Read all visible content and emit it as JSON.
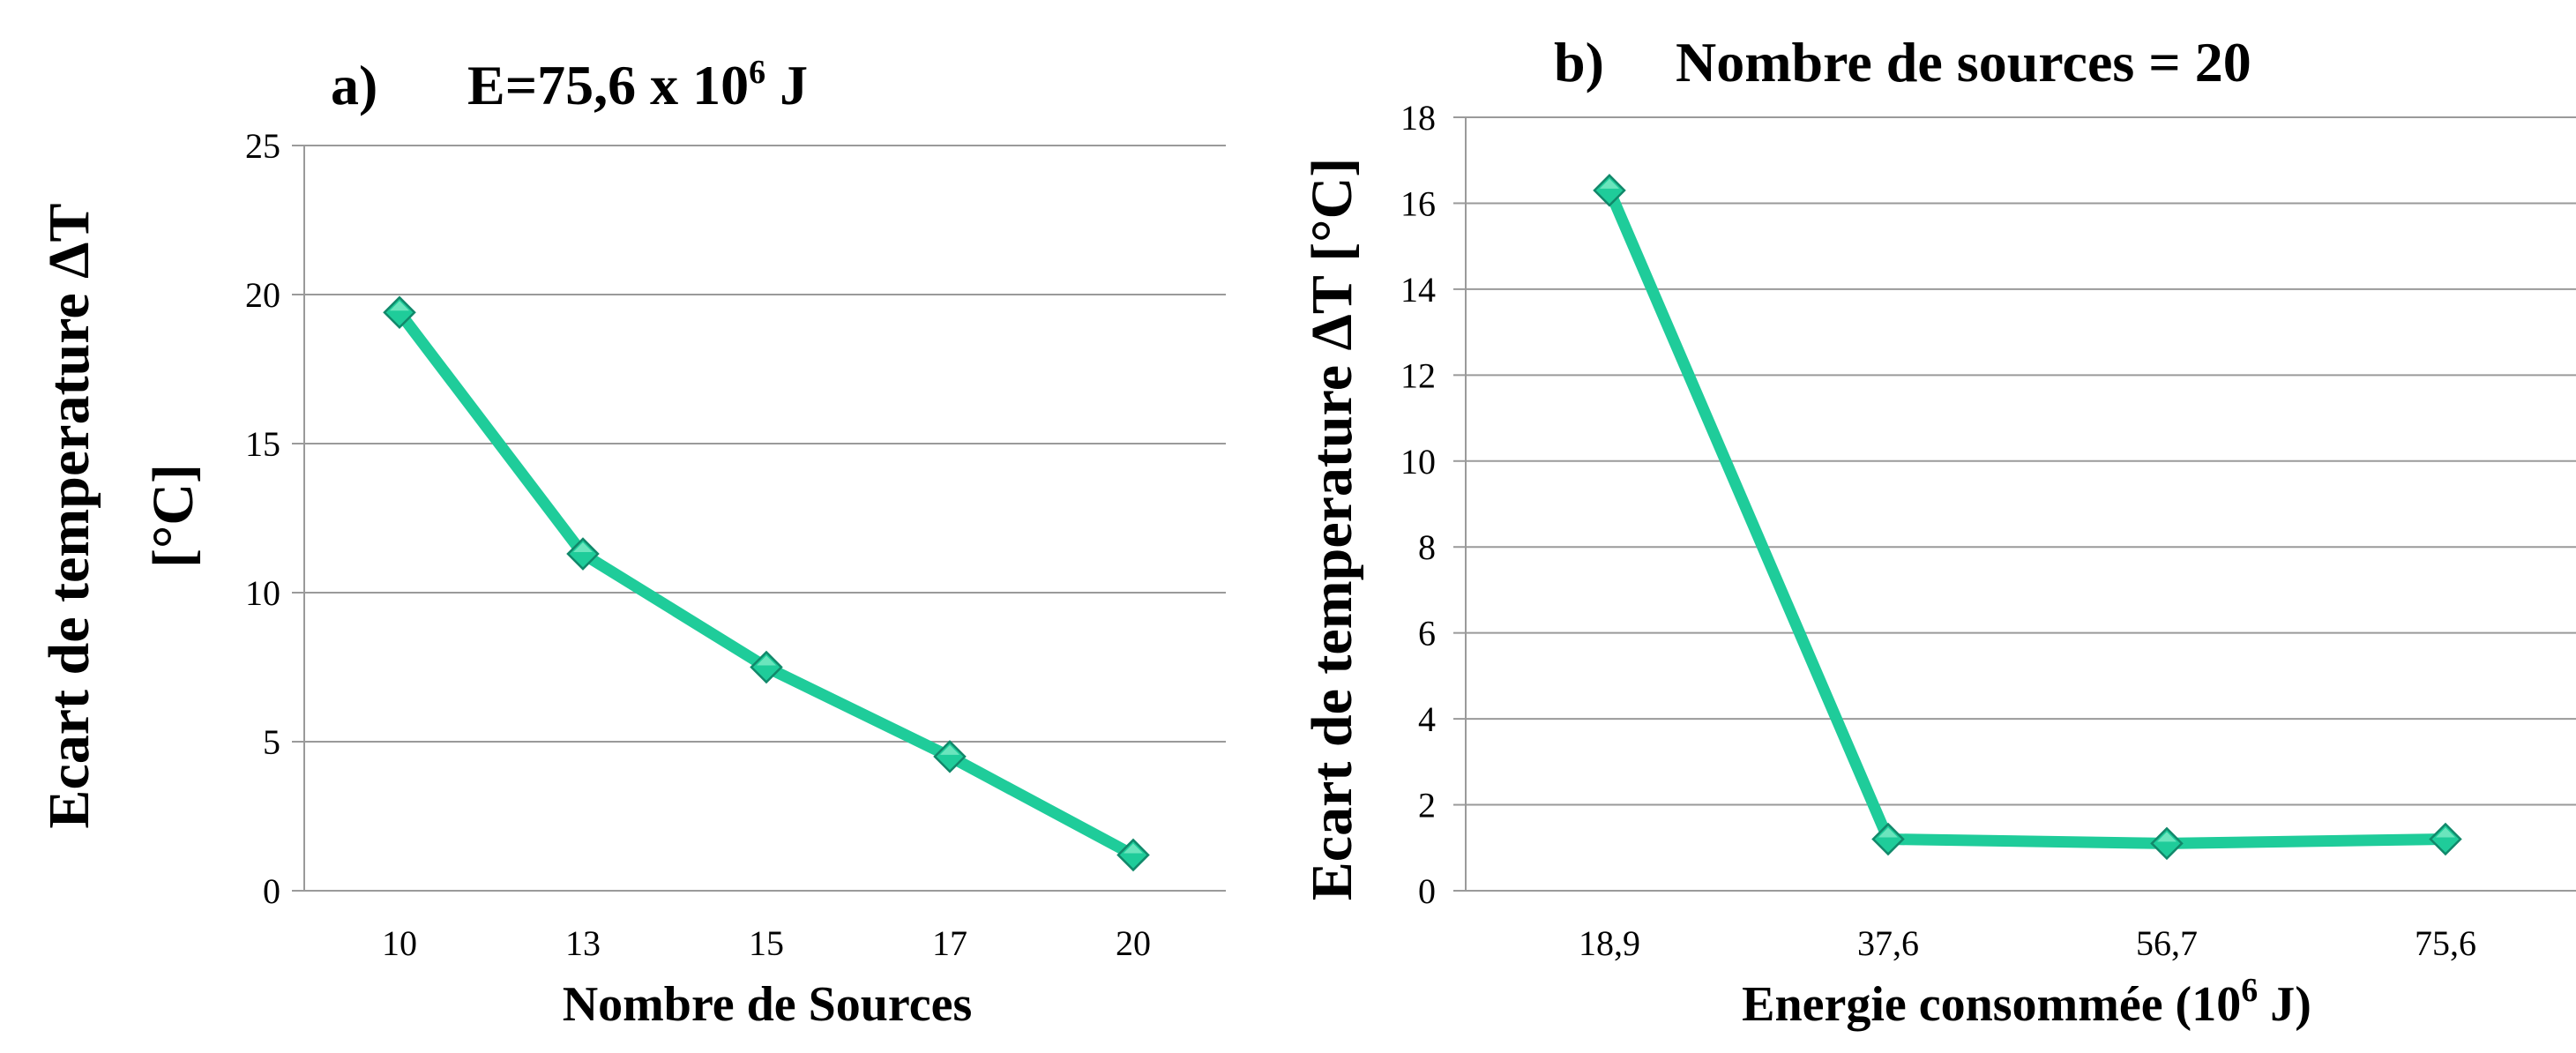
{
  "chart_data": [
    {
      "type": "line",
      "title_prefix": "a)",
      "title_main": "E=75,6 x 10",
      "title_sup": "6",
      "title_suffix": " J",
      "xlabel": "Nombre de Sources",
      "ylabel_line1": "Ecart de temperature ΔT",
      "ylabel_line2": "[°C]",
      "categories": [
        "10",
        "13",
        "15",
        "17",
        "20"
      ],
      "values": [
        19.4,
        11.3,
        7.5,
        4.5,
        1.2
      ],
      "ylim": [
        0,
        25
      ],
      "yticks": [
        "0",
        "5",
        "10",
        "15",
        "20",
        "25"
      ],
      "grid": true,
      "color": "#1fcc9a"
    },
    {
      "type": "line",
      "title_prefix": "b)",
      "title_main": "Nombre de sources = 20",
      "xlabel_main": "Energie consommée (10",
      "xlabel_sup": "6",
      "xlabel_suffix": " J)",
      "ylabel": "Ecart de temperature ΔT [°C]",
      "categories": [
        "18,9",
        "37,6",
        "56,7",
        "75,6"
      ],
      "values": [
        16.3,
        1.2,
        1.1,
        1.2
      ],
      "ylim": [
        0,
        18
      ],
      "yticks": [
        "0",
        "2",
        "4",
        "6",
        "8",
        "10",
        "12",
        "14",
        "16",
        "18"
      ],
      "grid": true,
      "color": "#1fcc9a"
    }
  ]
}
